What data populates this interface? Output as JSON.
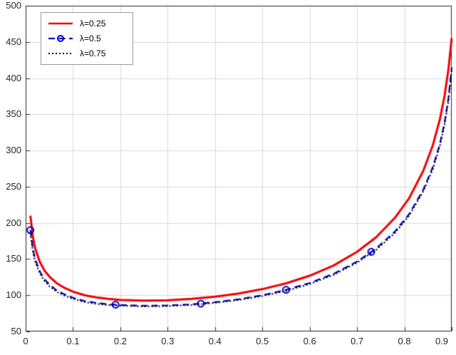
{
  "figure": {
    "background": "#ffffff"
  },
  "chart_data": {
    "type": "line",
    "title": "",
    "xlabel": "",
    "ylabel": "",
    "xlim": [
      0,
      0.9
    ],
    "ylim": [
      50,
      500
    ],
    "grid": true,
    "legend_position": "top-left",
    "xticks": [
      0,
      0.1,
      0.2,
      0.3,
      0.4,
      0.5,
      0.6,
      0.7,
      0.8,
      0.9
    ],
    "xtick_labels": [
      "0",
      "0.1",
      "0.2",
      "0.3",
      "0.4",
      "0.5",
      "0.6",
      "0.7",
      "0.8",
      "0.9"
    ],
    "yticks": [
      50,
      100,
      150,
      200,
      250,
      300,
      350,
      400,
      450,
      500
    ],
    "ytick_labels": [
      "50",
      "100",
      "150",
      "200",
      "250",
      "300",
      "350",
      "400",
      "450",
      "500"
    ],
    "style": {
      "background": "#ffffff",
      "grid_color": "#dadada",
      "axis_color": "#262626",
      "tick_label_color": "#262626"
    },
    "x": [
      0.01,
      0.015,
      0.02,
      0.03,
      0.04,
      0.05,
      0.065,
      0.08,
      0.1,
      0.125,
      0.15,
      0.175,
      0.2,
      0.25,
      0.3,
      0.35,
      0.4,
      0.45,
      0.5,
      0.55,
      0.6,
      0.65,
      0.7,
      0.74,
      0.78,
      0.81,
      0.84,
      0.86,
      0.875,
      0.885,
      0.893,
      0.9
    ],
    "series": [
      {
        "name": "λ=0.25",
        "color": "#f20000",
        "style": "solid",
        "dash": [],
        "width": 3,
        "values": [
          210,
          182,
          165,
          146,
          134,
          126,
          117,
          111,
          105,
          100,
          97,
          95,
          93.5,
          92.5,
          93,
          95,
          98,
          102.5,
          108.5,
          116.5,
          127,
          141,
          160,
          180,
          207,
          234,
          272,
          307,
          343,
          376,
          412,
          455
        ]
      },
      {
        "name": "λ=0.5",
        "color": "#0000cc",
        "style": "dashed",
        "dash": [
          9,
          5.5
        ],
        "width": 2.2,
        "marker": "o",
        "marker_points": [
          [
            0.01,
            190
          ],
          [
            0.19,
            87
          ],
          [
            0.37,
            88.5
          ],
          [
            0.55,
            107.5
          ],
          [
            0.73,
            160
          ]
        ],
        "values": [
          190,
          165,
          150,
          133,
          122,
          115,
          107,
          102,
          96.5,
          92,
          89.5,
          87.5,
          86.5,
          85.5,
          86,
          87.5,
          90.5,
          94.5,
          100,
          107.5,
          117,
          129.5,
          146.5,
          164.5,
          188,
          212,
          246,
          277,
          309,
          339,
          372,
          415
        ]
      },
      {
        "name": "λ=0.75",
        "color": "#000000",
        "style": "dotted",
        "dash": [
          2,
          3
        ],
        "width": 2,
        "values": [
          186,
          161,
          146.5,
          130,
          119.5,
          112.5,
          105,
          100,
          95,
          90.5,
          88,
          86.5,
          85.5,
          84.5,
          85,
          86.5,
          89.5,
          93.5,
          99,
          106,
          115.5,
          128,
          145,
          162.5,
          186,
          210,
          243.5,
          274,
          306,
          336,
          368,
          411
        ]
      }
    ]
  }
}
